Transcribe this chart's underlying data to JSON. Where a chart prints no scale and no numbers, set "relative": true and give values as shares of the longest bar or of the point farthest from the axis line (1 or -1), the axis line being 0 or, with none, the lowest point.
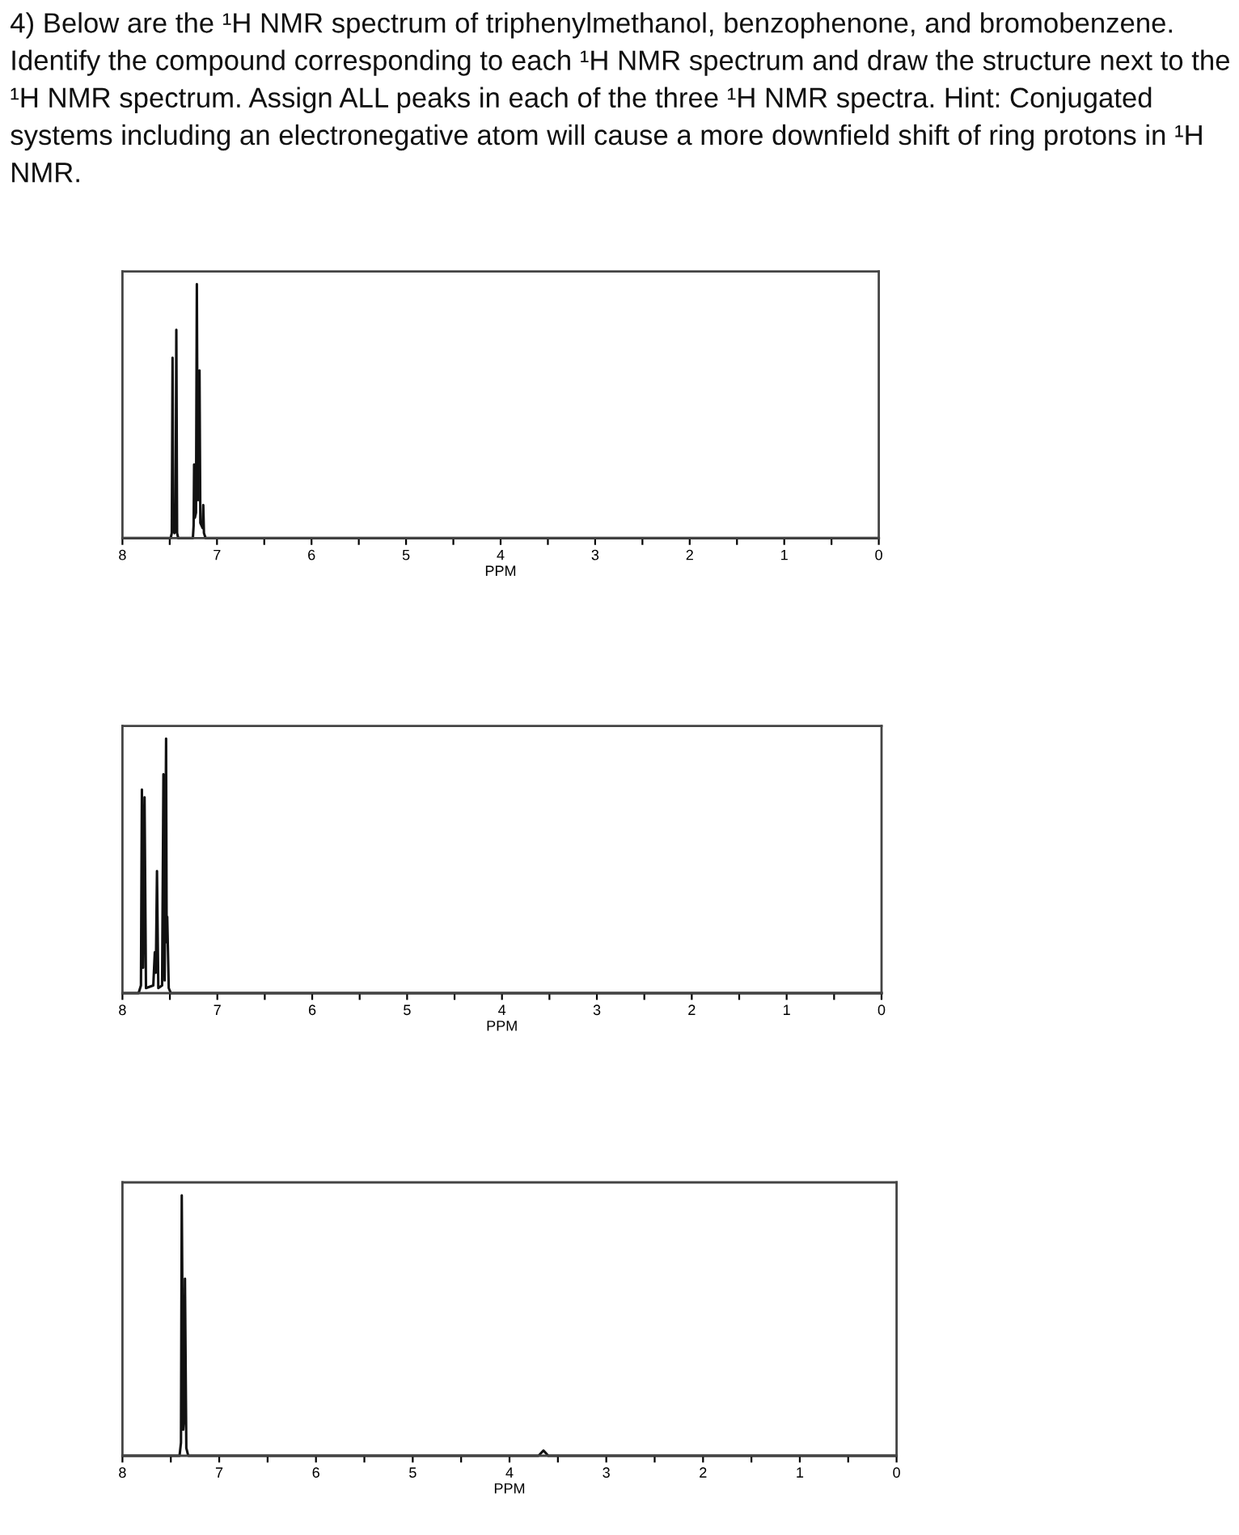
{
  "chart_data": [
    {
      "type": "line",
      "title": "4) Below are the ¹H NMR spectrum of triphenylmethanol, benzophenone, and bromobenzene. Identify the compound corresponding to each ¹H NMR spectrum and draw the structure next to the ¹H NMR spectrum. Assign ALL peaks in each of the three ¹H NMR spectra. Hint: Conjugated systems including an electronegative atom will cause a more downfield shift of ring protons in ¹H NMR.",
      "xlabel": "PPM",
      "relative": true,
      "xlim": [
        8,
        0
      ],
      "xticks": [
        8,
        {
          "value": 7.5,
          "label": null
        },
        7,
        {
          "value": 6.5,
          "label": null
        },
        6,
        {
          "value": 5.5,
          "label": null
        },
        5,
        {
          "value": 4.5,
          "label": null
        },
        4,
        {
          "value": 3.5,
          "label": null
        },
        3,
        {
          "value": 2.5,
          "label": null
        },
        2,
        {
          "value": 1.5,
          "label": null
        },
        1,
        {
          "value": 0.5,
          "label": null
        },
        0
      ],
      "series": [
        {
          "color": "#111111",
          "x": [
            8,
            7.49,
            7.478,
            7.47,
            7.462,
            7.45,
            7.438,
            7.43,
            7.422,
            7.41,
            7.255,
            7.247,
            7.242,
            7.234,
            7.222,
            7.213,
            7.204,
            7.194,
            7.185,
            7.176,
            7.152,
            7.145,
            7.138,
            7.12,
            0
          ],
          "values": [
            0,
            0,
            0.02,
            0.71,
            0.03,
            0.02,
            0.03,
            0.82,
            0.02,
            0,
            0,
            0.05,
            0.29,
            0.08,
            0.1,
            1,
            0.15,
            0.15,
            0.66,
            0.06,
            0.04,
            0.13,
            0.02,
            0,
            0
          ]
        }
      ]
    },
    {
      "type": "line",
      "xlabel": "PPM",
      "relative": true,
      "xlim": [
        8,
        0
      ],
      "xticks": [
        8,
        {
          "value": 7.5,
          "label": null
        },
        7,
        {
          "value": 6.5,
          "label": null
        },
        6,
        {
          "value": 5.5,
          "label": null
        },
        5,
        {
          "value": 4.5,
          "label": null
        },
        4,
        {
          "value": 3.5,
          "label": null
        },
        3,
        {
          "value": 2.5,
          "label": null
        },
        2,
        {
          "value": 1.5,
          "label": null
        },
        1,
        {
          "value": 0.5,
          "label": null
        },
        0
      ],
      "series": [
        {
          "color": "#111111",
          "x": [
            8,
            7.83,
            7.805,
            7.795,
            7.782,
            7.767,
            7.752,
            7.675,
            7.659,
            7.648,
            7.636,
            7.622,
            7.582,
            7.568,
            7.555,
            7.54,
            7.534,
            7.528,
            7.512,
            7.49,
            0
          ],
          "values": [
            0,
            0,
            0.03,
            0.8,
            0.1,
            0.77,
            0.02,
            0.03,
            0.16,
            0.08,
            0.48,
            0.02,
            0.03,
            0.86,
            0.05,
            1,
            0.2,
            0.3,
            0.02,
            0,
            0
          ]
        }
      ]
    },
    {
      "type": "line",
      "xlabel": "PPM",
      "relative": true,
      "xlim": [
        8,
        0
      ],
      "xticks": [
        8,
        {
          "value": 7.5,
          "label": null
        },
        7,
        {
          "value": 6.5,
          "label": null
        },
        6,
        {
          "value": 5.5,
          "label": null
        },
        5,
        {
          "value": 4.5,
          "label": null
        },
        4,
        {
          "value": 3.5,
          "label": null
        },
        3,
        {
          "value": 2.5,
          "label": null
        },
        2,
        {
          "value": 1.5,
          "label": null
        },
        1,
        {
          "value": 0.5,
          "label": null
        },
        0
      ],
      "series": [
        {
          "color": "#111111",
          "x": [
            8,
            7.41,
            7.395,
            7.387,
            7.372,
            7.362,
            7.354,
            7.34,
            7.32,
            3.7,
            3.649,
            3.6,
            0
          ],
          "values": [
            0,
            0,
            0.05,
            1,
            0.1,
            0.15,
            0.68,
            0.03,
            0,
            0,
            0.02,
            0,
            0
          ]
        }
      ]
    }
  ]
}
